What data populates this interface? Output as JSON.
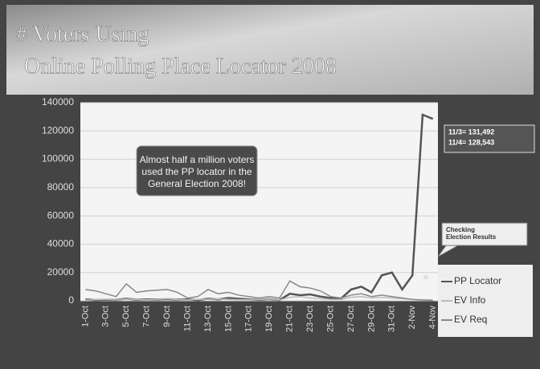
{
  "chart_data": {
    "type": "line",
    "title": [
      "# Voters Using",
      "Online Polling Place Locator 2008"
    ],
    "categories": [
      "1-Oct",
      null,
      "3-Oct",
      null,
      "5-Oct",
      null,
      "7-Oct",
      null,
      "9-Oct",
      null,
      "11-Oct",
      null,
      "13-Oct",
      null,
      "15-Oct",
      null,
      "17-Oct",
      null,
      "19-Oct",
      null,
      "21-Oct",
      null,
      "23-Oct",
      null,
      "25-Oct",
      null,
      "27-Oct",
      null,
      "29-Oct",
      null,
      "31-Oct",
      null,
      "2-Nov",
      null,
      "4-Nov"
    ],
    "series": [
      {
        "name": "PP Locator",
        "color": "#555555",
        "values": [
          1000,
          500,
          800,
          600,
          1500,
          800,
          1000,
          900,
          1200,
          800,
          1000,
          500,
          1500,
          1000,
          2000,
          1500,
          1000,
          800,
          1200,
          500,
          5000,
          4000,
          4500,
          3000,
          2000,
          1500,
          8000,
          10000,
          6000,
          18000,
          20000,
          8000,
          18000,
          131492,
          128543
        ]
      },
      {
        "name": "EV Info",
        "color": "#bbbbbb",
        "values": [
          500,
          800,
          1000,
          600,
          1200,
          900,
          700,
          1000,
          1500,
          800,
          600,
          900,
          1100,
          1300,
          1000,
          800,
          700,
          900,
          1200,
          600,
          2500,
          3000,
          2000,
          1500,
          1000,
          900,
          2500,
          3000,
          2000,
          2500,
          2000,
          1500,
          1000,
          800,
          600
        ]
      },
      {
        "name": "EV Req",
        "color": "#888888",
        "values": [
          8000,
          7000,
          5000,
          3000,
          12000,
          6000,
          7000,
          7500,
          8000,
          6000,
          2000,
          3000,
          8000,
          5000,
          6000,
          4000,
          3000,
          2000,
          3000,
          2000,
          14000,
          10000,
          9000,
          7000,
          3000,
          2000,
          4000,
          5000,
          3000,
          4000,
          3000,
          2000,
          1000,
          500,
          300
        ]
      }
    ],
    "ylim": [
      0,
      140000
    ],
    "yticks": [
      0,
      20000,
      40000,
      60000,
      80000,
      100000,
      120000,
      140000
    ],
    "grid": true,
    "legend": "right",
    "annotations": [
      {
        "lines": [
          "Almost half a million voters",
          "used the PP locator in the",
          "General Election 2008!"
        ]
      },
      {
        "lines": [
          "11/3= 131,492",
          "11/4= 128,543"
        ]
      },
      {
        "lines": [
          "Checking",
          "Election Results"
        ]
      },
      {
        "lines": [
          "*"
        ]
      }
    ]
  }
}
